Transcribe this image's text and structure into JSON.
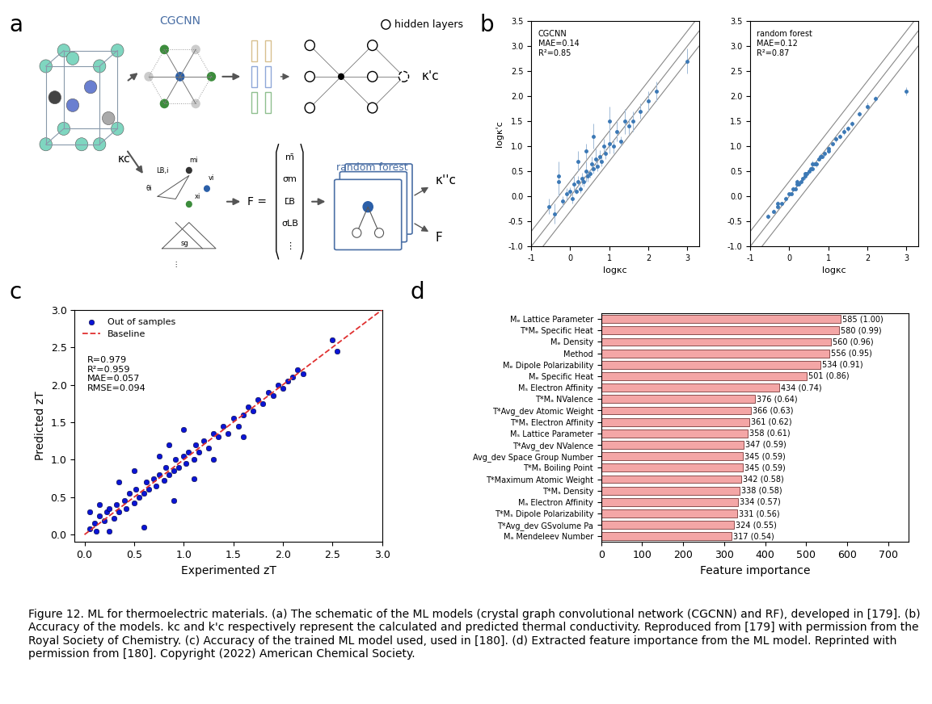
{
  "panel_labels": [
    "a",
    "b",
    "c",
    "d"
  ],
  "diagram": {
    "crystal_label": "κc",
    "cgcnn_label": "CGCNN",
    "hidden_layers_label": "hidden layers",
    "cgcnn_output": "κ'c",
    "feature_symbol": "F =",
    "feature_vector": [
      "m̄",
      "σm",
      "L̄B",
      "σLB",
      "⋮"
    ],
    "descriptor_symbols": [
      "mi",
      "vi",
      "xi",
      "LB,i",
      "θi",
      "sg",
      "⋮"
    ],
    "rf_label": "random forest",
    "rf_outputs": [
      "κ''c",
      "F̄"
    ]
  },
  "chart_data": [
    {
      "type": "scatter",
      "annotations": [
        "CGCNN",
        "MAE=0.14",
        "R²=0.85"
      ],
      "x_label": "logκc",
      "y_label": "logκ'c",
      "color": "#3b78b5",
      "marker": "o",
      "x": [
        -0.55,
        -0.4,
        -0.3,
        -0.2,
        -0.1,
        0.0,
        0.05,
        0.1,
        0.15,
        0.2,
        0.25,
        0.3,
        0.35,
        0.4,
        0.45,
        0.5,
        0.55,
        0.6,
        0.65,
        0.7,
        0.75,
        0.8,
        0.85,
        0.9,
        1.0,
        1.1,
        1.2,
        1.3,
        1.4,
        1.5,
        1.6,
        1.8,
        2.0,
        2.2,
        3.0,
        -0.3,
        0.2,
        0.6,
        1.0,
        0.4
      ],
      "values": [
        -0.2,
        -0.35,
        0.4,
        -0.1,
        0.05,
        0.1,
        -0.05,
        0.25,
        0.1,
        0.3,
        0.15,
        0.35,
        0.3,
        0.5,
        0.4,
        0.45,
        0.65,
        0.55,
        0.75,
        0.6,
        0.8,
        0.7,
        1.0,
        0.85,
        1.05,
        1.0,
        1.3,
        1.1,
        1.5,
        1.4,
        1.5,
        1.7,
        1.9,
        2.1,
        2.7,
        0.3,
        0.7,
        1.2,
        1.5,
        0.9
      ],
      "errors": [
        0.15,
        0.2,
        0.3,
        0.1,
        0.12,
        0.08,
        0.1,
        0.15,
        0.05,
        0.1,
        0.08,
        0.12,
        0.1,
        0.2,
        0.1,
        0.08,
        0.15,
        0.1,
        0.2,
        0.1,
        0.12,
        0.1,
        0.15,
        0.1,
        0.2,
        0.15,
        0.2,
        0.1,
        0.25,
        0.15,
        0.2,
        0.15,
        0.2,
        0.2,
        0.25,
        0.3,
        0.2,
        0.25,
        0.3,
        0.15
      ],
      "reference_line_offsets": [
        -0.3,
        0.0,
        0.3
      ],
      "xlim": [
        -1,
        3.3
      ],
      "ylim": [
        -1,
        3.5
      ],
      "xticks": [
        -1,
        0,
        1,
        2,
        3
      ],
      "yticks": [
        {
          "value": -1,
          "label": "-1.0"
        },
        -0.5,
        {
          "value": 0,
          "label": "0.0"
        },
        0.5,
        {
          "value": 1,
          "label": "1.0"
        },
        1.5,
        {
          "value": 2,
          "label": "2.0"
        },
        2.5,
        {
          "value": 3,
          "label": "3.0"
        },
        3.5
      ]
    },
    {
      "type": "scatter",
      "annotations": [
        "random forest",
        "MAE=0.12",
        "R²=0.87"
      ],
      "x_label": "logκc",
      "color": "#3b78b5",
      "marker": "o",
      "x": [
        -0.55,
        -0.4,
        -0.3,
        -0.2,
        -0.1,
        0.0,
        0.05,
        0.1,
        0.15,
        0.2,
        0.25,
        0.3,
        0.35,
        0.4,
        0.45,
        0.5,
        0.55,
        0.6,
        0.65,
        0.7,
        0.75,
        0.8,
        0.85,
        0.9,
        1.0,
        1.1,
        1.2,
        1.3,
        1.4,
        1.5,
        1.6,
        1.8,
        2.0,
        2.2,
        3.0,
        -0.3,
        0.2,
        0.6,
        1.0,
        0.4
      ],
      "values": [
        -0.4,
        -0.3,
        -0.15,
        -0.15,
        -0.05,
        0.05,
        0.05,
        0.15,
        0.15,
        0.25,
        0.25,
        0.3,
        0.35,
        0.4,
        0.45,
        0.5,
        0.55,
        0.55,
        0.65,
        0.65,
        0.75,
        0.8,
        0.8,
        0.85,
        0.95,
        1.05,
        1.15,
        1.2,
        1.3,
        1.35,
        1.45,
        1.65,
        1.8,
        1.95,
        2.1,
        -0.2,
        0.3,
        0.65,
        0.9,
        0.45
      ],
      "errors": [
        0.05,
        0.04,
        0.06,
        0.03,
        0.05,
        0.04,
        0.03,
        0.05,
        0.04,
        0.06,
        0.03,
        0.05,
        0.04,
        0.06,
        0.03,
        0.05,
        0.04,
        0.05,
        0.03,
        0.06,
        0.04,
        0.05,
        0.03,
        0.06,
        0.05,
        0.04,
        0.06,
        0.05,
        0.07,
        0.05,
        0.06,
        0.05,
        0.07,
        0.06,
        0.08,
        0.05,
        0.04,
        0.06,
        0.05,
        0.04
      ],
      "reference_line_offsets": [
        -0.3,
        0.0,
        0.3
      ],
      "xlim": [
        -1,
        3.3
      ],
      "ylim": [
        -1,
        3.5
      ],
      "xticks": [
        -1,
        0,
        1,
        2,
        3
      ],
      "yticks": [
        {
          "value": -1,
          "label": "-1.0"
        },
        -0.5,
        {
          "value": 0,
          "label": "0.0"
        },
        0.5,
        {
          "value": 1,
          "label": "1.0"
        },
        1.5,
        {
          "value": 2,
          "label": "2.0"
        },
        2.5,
        {
          "value": 3,
          "label": "3.0"
        },
        3.5
      ]
    },
    {
      "type": "scatter",
      "x_label": "Experimented zT",
      "y_label": "Predicted zT",
      "legend": "upper left",
      "annotations": [
        "R=0.979",
        "R²=0.959",
        "MAE=0.057",
        "RMSE=0.094"
      ],
      "series": [
        {
          "name": "Out of samples",
          "type": "scatter",
          "color": "#0a14d6",
          "marker": "o",
          "x": [
            0.05,
            0.1,
            0.12,
            0.15,
            0.2,
            0.22,
            0.25,
            0.3,
            0.32,
            0.35,
            0.4,
            0.42,
            0.45,
            0.5,
            0.52,
            0.55,
            0.6,
            0.62,
            0.65,
            0.7,
            0.72,
            0.75,
            0.8,
            0.82,
            0.85,
            0.9,
            0.92,
            0.95,
            1.0,
            1.02,
            1.05,
            1.1,
            1.12,
            1.15,
            1.2,
            1.25,
            1.3,
            1.35,
            1.4,
            1.45,
            1.5,
            1.55,
            1.6,
            1.65,
            1.7,
            1.75,
            1.8,
            1.85,
            1.9,
            1.95,
            2.0,
            2.05,
            2.1,
            2.15,
            2.2,
            2.5,
            2.55,
            0.9,
            0.35,
            0.6,
            1.0,
            0.15,
            0.75,
            1.3,
            1.1,
            0.5,
            0.25,
            0.85,
            0.05,
            1.6
          ],
          "values": [
            0.08,
            0.15,
            0.05,
            0.25,
            0.18,
            0.3,
            0.35,
            0.22,
            0.4,
            0.3,
            0.45,
            0.35,
            0.55,
            0.42,
            0.6,
            0.5,
            0.55,
            0.7,
            0.6,
            0.75,
            0.65,
            0.8,
            0.72,
            0.9,
            0.8,
            0.85,
            1.0,
            0.9,
            1.05,
            0.95,
            1.1,
            1.0,
            1.2,
            1.1,
            1.25,
            1.15,
            1.35,
            1.3,
            1.45,
            1.35,
            1.55,
            1.45,
            1.6,
            1.7,
            1.65,
            1.8,
            1.75,
            1.9,
            1.85,
            2.0,
            1.95,
            2.05,
            2.1,
            2.2,
            2.15,
            2.6,
            2.45,
            0.45,
            0.7,
            0.1,
            1.4,
            0.4,
            1.05,
            1.0,
            0.75,
            0.85,
            0.05,
            1.2,
            0.3,
            1.3
          ]
        },
        {
          "name": "Baseline",
          "type": "line",
          "color": "#e03030",
          "line_style": "dashed",
          "x": [
            0,
            3
          ],
          "values": [
            0,
            3
          ]
        }
      ],
      "xlim": [
        -0.1,
        3.0
      ],
      "ylim": [
        -0.1,
        3.0
      ],
      "xticks": [
        {
          "value": 0,
          "label": "0.0"
        },
        0.5,
        {
          "value": 1,
          "label": "1.0"
        },
        1.5,
        {
          "value": 2,
          "label": "2.0"
        },
        2.5,
        {
          "value": 3,
          "label": "3.0"
        }
      ],
      "yticks": [
        {
          "value": 0,
          "label": "0.0"
        },
        0.5,
        {
          "value": 1,
          "label": "1.0"
        },
        1.5,
        {
          "value": 2,
          "label": "2.0"
        },
        2.5,
        {
          "value": 3,
          "label": "3.0"
        }
      ]
    },
    {
      "type": "bar",
      "orientation": "horizontal",
      "x_label": "Feature importance",
      "color": "#f4a6a6",
      "data_labels": true,
      "categories": [
        "Mₑ Lattice Parameter",
        "T*Mₑ Specific Heat",
        "Mₑ Density",
        "Method",
        "Mₑ Dipole Polarizability",
        "Mₑ Specific Heat",
        "Mₛ Electron Affinity",
        "T*Mₐ NValence",
        "T*Avg_dev Atomic Weight",
        "T*Mₛ Electron Affinity",
        "Mₛ Lattice Parameter",
        "T*Avg_dev NValence",
        "Avg_dev Space Group Number",
        "T*Mₛ Boiling Point",
        "T*Maximum Atomic Weight",
        "T*Mₛ Density",
        "Mₐ Electron Affinity",
        "T*Mₛ Dipole Polarizability",
        "T*Avg_dev GSvolume Pa",
        "Mₐ Mendeleev Number"
      ],
      "values": [
        585,
        580,
        560,
        556,
        534,
        501,
        434,
        376,
        366,
        361,
        358,
        347,
        345,
        345,
        342,
        338,
        334,
        331,
        324,
        317
      ],
      "value_labels": [
        "585 (1.00)",
        "580 (0.99)",
        "560 (0.96)",
        "556 (0.95)",
        "534 (0.91)",
        "501 (0.86)",
        "434 (0.74)",
        "376 (0.64)",
        "366 (0.63)",
        "361 (0.62)",
        "358 (0.61)",
        "347 (0.59)",
        "345 (0.59)",
        "345 (0.59)",
        "342 (0.58)",
        "338 (0.58)",
        "334 (0.57)",
        "331 (0.56)",
        "324 (0.55)",
        "317 (0.54)"
      ],
      "xlim": [
        0,
        750
      ],
      "xticks": [
        0,
        100,
        200,
        300,
        400,
        500,
        600,
        700
      ]
    }
  ],
  "caption": "Figure 12. ML for thermoelectric materials. (a) The schematic of the ML models (crystal graph convolutional network (CGCNN) and RF), developed in [179]. (b) Accuracy of the models. kc and k'c respectively represent the calculated and predicted thermal conductivity. Reproduced from [179] with permission from the Royal Society of Chemistry. (c) Accuracy of the trained ML model used, used in [180]. (d) Extracted feature importance from the ML model. Reprinted with permission from [180]. Copyright (2022) American Chemical Society."
}
